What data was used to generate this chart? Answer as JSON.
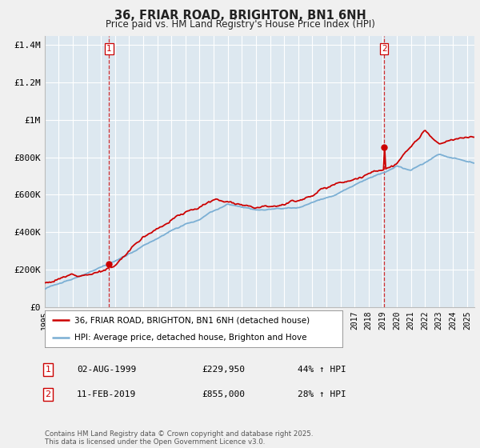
{
  "title": "36, FRIAR ROAD, BRIGHTON, BN1 6NH",
  "subtitle": "Price paid vs. HM Land Registry's House Price Index (HPI)",
  "ylabel_ticks": [
    "£0",
    "£200K",
    "£400K",
    "£600K",
    "£800K",
    "£1M",
    "£1.2M",
    "£1.4M"
  ],
  "ytick_vals": [
    0,
    200000,
    400000,
    600000,
    800000,
    1000000,
    1200000,
    1400000
  ],
  "ylim": [
    0,
    1450000
  ],
  "xlim_start": 1995.0,
  "xlim_end": 2025.5,
  "red_color": "#cc0000",
  "blue_color": "#7bafd4",
  "plot_bg_color": "#dde8f0",
  "background_color": "#f0f0f0",
  "grid_color": "#ffffff",
  "marker1_x": 1999.58,
  "marker1_y": 229950,
  "marker2_x": 2019.1,
  "marker2_y": 855000,
  "legend_label_red": "36, FRIAR ROAD, BRIGHTON, BN1 6NH (detached house)",
  "legend_label_blue": "HPI: Average price, detached house, Brighton and Hove",
  "annotation1_num": "1",
  "annotation1_date": "02-AUG-1999",
  "annotation1_price": "£229,950",
  "annotation1_hpi": "44% ↑ HPI",
  "annotation2_num": "2",
  "annotation2_date": "11-FEB-2019",
  "annotation2_price": "£855,000",
  "annotation2_hpi": "28% ↑ HPI",
  "footnote": "Contains HM Land Registry data © Crown copyright and database right 2025.\nThis data is licensed under the Open Government Licence v3.0."
}
